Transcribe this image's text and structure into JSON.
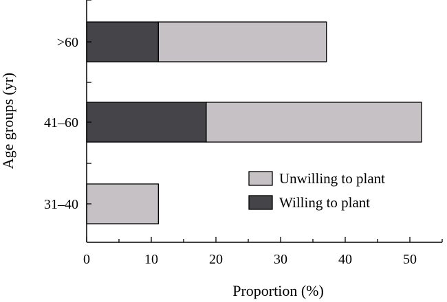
{
  "chart_data": {
    "type": "bar",
    "orientation": "horizontal",
    "stacked": true,
    "categories": [
      ">60",
      "41–60",
      "31–40"
    ],
    "series": [
      {
        "name": "Willing to plant",
        "values": [
          11.1,
          18.5,
          0
        ],
        "color": "#454449"
      },
      {
        "name": "Unwilling to plant",
        "values": [
          26.0,
          33.3,
          11.1
        ],
        "color": "#c5c1c4"
      }
    ],
    "xlabel": "Proportion (%)",
    "ylabel": "Age groups (yr)",
    "xlim": [
      0,
      55
    ],
    "xticks": [
      0,
      10,
      20,
      30,
      40,
      50
    ],
    "legend_position": "bottom-right",
    "legend_order": [
      "Unwilling to plant",
      "Willing to plant"
    ],
    "grid": false
  }
}
